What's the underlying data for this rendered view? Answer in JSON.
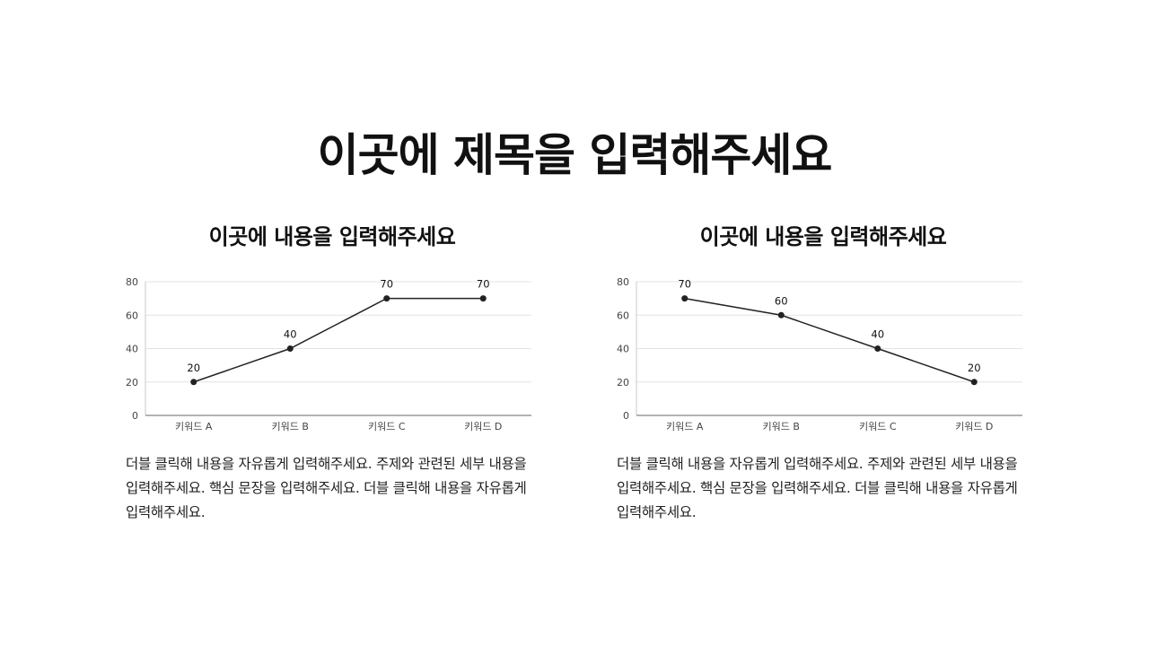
{
  "page_title": "이곳에 제목을 입력해주세요",
  "panels": [
    {
      "title": "이곳에 내용을 입력해주세요",
      "body": "더블 클릭해 내용을 자유롭게 입력해주세요. 주제와 관련된 세부 내용을 입력해주세요. 핵심 문장을 입력해주세요. 더블 클릭해 내용을 자유롭게 입력해주세요."
    },
    {
      "title": "이곳에 내용을 입력해주세요",
      "body": "더블 클릭해 내용을 자유롭게 입력해주세요. 주제와 관련된 세부 내용을 입력해주세요. 핵심 문장을 입력해주세요. 더블 클릭해 내용을 자유롭게 입력해주세요."
    }
  ],
  "chart_data": [
    {
      "type": "line",
      "categories": [
        "키워드 A",
        "키워드 B",
        "키워드 C",
        "키워드 D"
      ],
      "values": [
        20,
        40,
        70,
        70
      ],
      "data_labels": [
        "20",
        "40",
        "70",
        "70"
      ],
      "yticks": [
        "0",
        "20",
        "40",
        "60",
        "80"
      ],
      "ylim": [
        0,
        80
      ],
      "grid": true,
      "line_color": "#222222",
      "grid_color": "#e3e3e3"
    },
    {
      "type": "line",
      "categories": [
        "키워드 A",
        "키워드 B",
        "키워드 C",
        "키워드 D"
      ],
      "values": [
        70,
        60,
        40,
        20
      ],
      "data_labels": [
        "70",
        "60",
        "40",
        "20"
      ],
      "yticks": [
        "0",
        "20",
        "40",
        "60",
        "80"
      ],
      "ylim": [
        0,
        80
      ],
      "grid": true,
      "line_color": "#222222",
      "grid_color": "#e3e3e3"
    }
  ]
}
